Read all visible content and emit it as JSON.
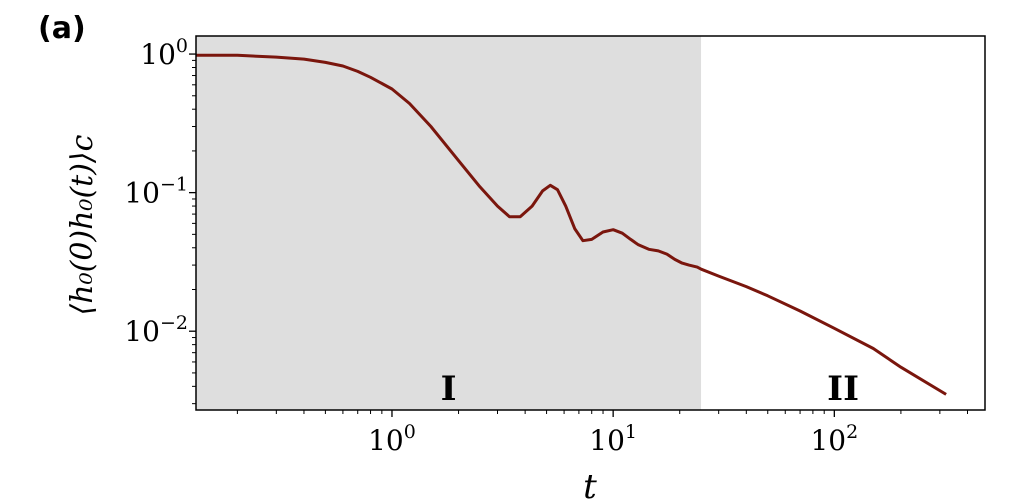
{
  "panel_label": "(a)",
  "chart_data": {
    "type": "line",
    "xlabel": "t",
    "ylabel": "⟨h₀(0)h₀(t)⟩c",
    "xscale": "log",
    "yscale": "log",
    "xlim": [
      0.13,
      480
    ],
    "ylim": [
      0.0027,
      1.35
    ],
    "xticks": [
      {
        "value": 1,
        "base": "10",
        "exp": "0"
      },
      {
        "value": 10,
        "base": "10",
        "exp": "1"
      },
      {
        "value": 100,
        "base": "10",
        "exp": "2"
      }
    ],
    "yticks": [
      {
        "value": 1,
        "base": "10",
        "exp": "0"
      },
      {
        "value": 0.1,
        "base": "10",
        "exp": "−1"
      },
      {
        "value": 0.01,
        "base": "10",
        "exp": "−2"
      }
    ],
    "regions": [
      {
        "label": "I",
        "x_start": 0.13,
        "x_end": 25,
        "color": "#dedede"
      },
      {
        "label": "II",
        "x_start": 25,
        "x_end": 480,
        "color": "#ffffff"
      }
    ],
    "series": [
      {
        "color": "#7a160d",
        "points": [
          [
            0.13,
            0.98
          ],
          [
            0.2,
            0.98
          ],
          [
            0.3,
            0.95
          ],
          [
            0.4,
            0.92
          ],
          [
            0.5,
            0.87
          ],
          [
            0.6,
            0.82
          ],
          [
            0.7,
            0.75
          ],
          [
            0.8,
            0.68
          ],
          [
            1.0,
            0.56
          ],
          [
            1.2,
            0.44
          ],
          [
            1.5,
            0.3
          ],
          [
            2.0,
            0.17
          ],
          [
            2.5,
            0.11
          ],
          [
            3.0,
            0.08
          ],
          [
            3.4,
            0.067
          ],
          [
            3.8,
            0.067
          ],
          [
            4.3,
            0.08
          ],
          [
            4.8,
            0.103
          ],
          [
            5.2,
            0.113
          ],
          [
            5.6,
            0.105
          ],
          [
            6.1,
            0.08
          ],
          [
            6.7,
            0.055
          ],
          [
            7.3,
            0.045
          ],
          [
            8.0,
            0.046
          ],
          [
            9.0,
            0.052
          ],
          [
            10.0,
            0.054
          ],
          [
            11.0,
            0.051
          ],
          [
            12.0,
            0.046
          ],
          [
            13.0,
            0.042
          ],
          [
            14.5,
            0.039
          ],
          [
            16.0,
            0.038
          ],
          [
            17.5,
            0.036
          ],
          [
            19.0,
            0.033
          ],
          [
            20.5,
            0.031
          ],
          [
            22.0,
            0.03
          ],
          [
            24.0,
            0.029
          ],
          [
            25.0,
            0.028
          ],
          [
            30.0,
            0.025
          ],
          [
            40.0,
            0.021
          ],
          [
            50.0,
            0.018
          ],
          [
            70.0,
            0.014
          ],
          [
            100.0,
            0.0105
          ],
          [
            150.0,
            0.0075
          ],
          [
            200.0,
            0.0055
          ],
          [
            320.0,
            0.0035
          ]
        ]
      }
    ]
  }
}
